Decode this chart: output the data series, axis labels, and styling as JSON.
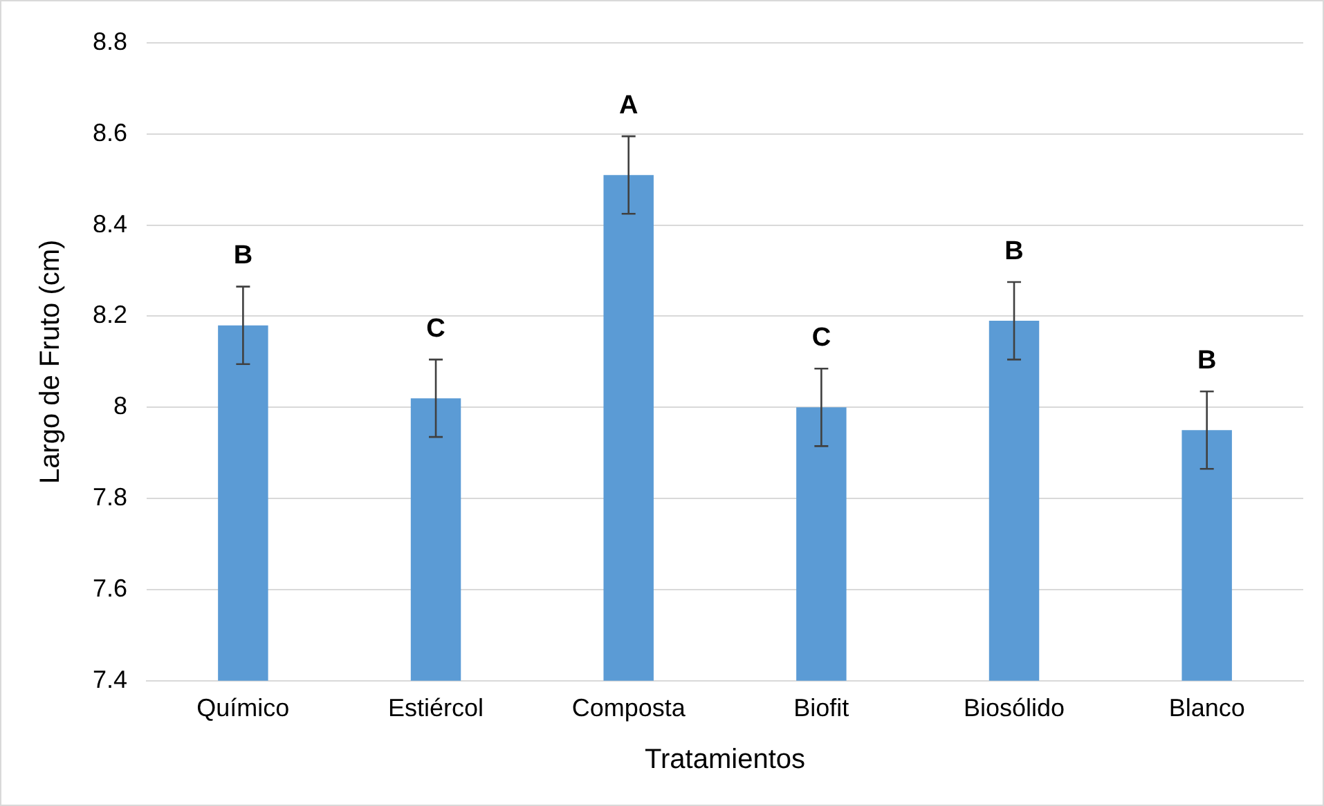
{
  "chart_data": {
    "type": "bar",
    "xlabel": "Tratamientos",
    "ylabel": "Largo de Fruto (cm)",
    "categories": [
      "Químico",
      "Estiércol",
      "Composta",
      "Biofit",
      "Biosólido",
      "Blanco"
    ],
    "values": [
      8.18,
      8.02,
      8.51,
      8.0,
      8.19,
      7.95
    ],
    "errors": [
      0.085,
      0.085,
      0.085,
      0.085,
      0.085,
      0.085
    ],
    "color": "#5b9bd5",
    "ylim": [
      7.4,
      8.8
    ],
    "yticks": [
      {
        "value": 7.4,
        "label": "7.4"
      },
      {
        "value": 7.6,
        "label": "7.6"
      },
      {
        "value": 7.8,
        "label": "7.8"
      },
      {
        "value": 8,
        "label": "8"
      },
      {
        "value": 8.2,
        "label": "8.2"
      },
      {
        "value": 8.4,
        "label": "8.4"
      },
      {
        "value": 8.6,
        "label": "8.6"
      },
      {
        "value": 8.8,
        "label": "8.8"
      }
    ],
    "grid": "y",
    "legend": false,
    "annotations": [
      "B",
      "C",
      "A",
      "C",
      "B",
      "B"
    ]
  }
}
